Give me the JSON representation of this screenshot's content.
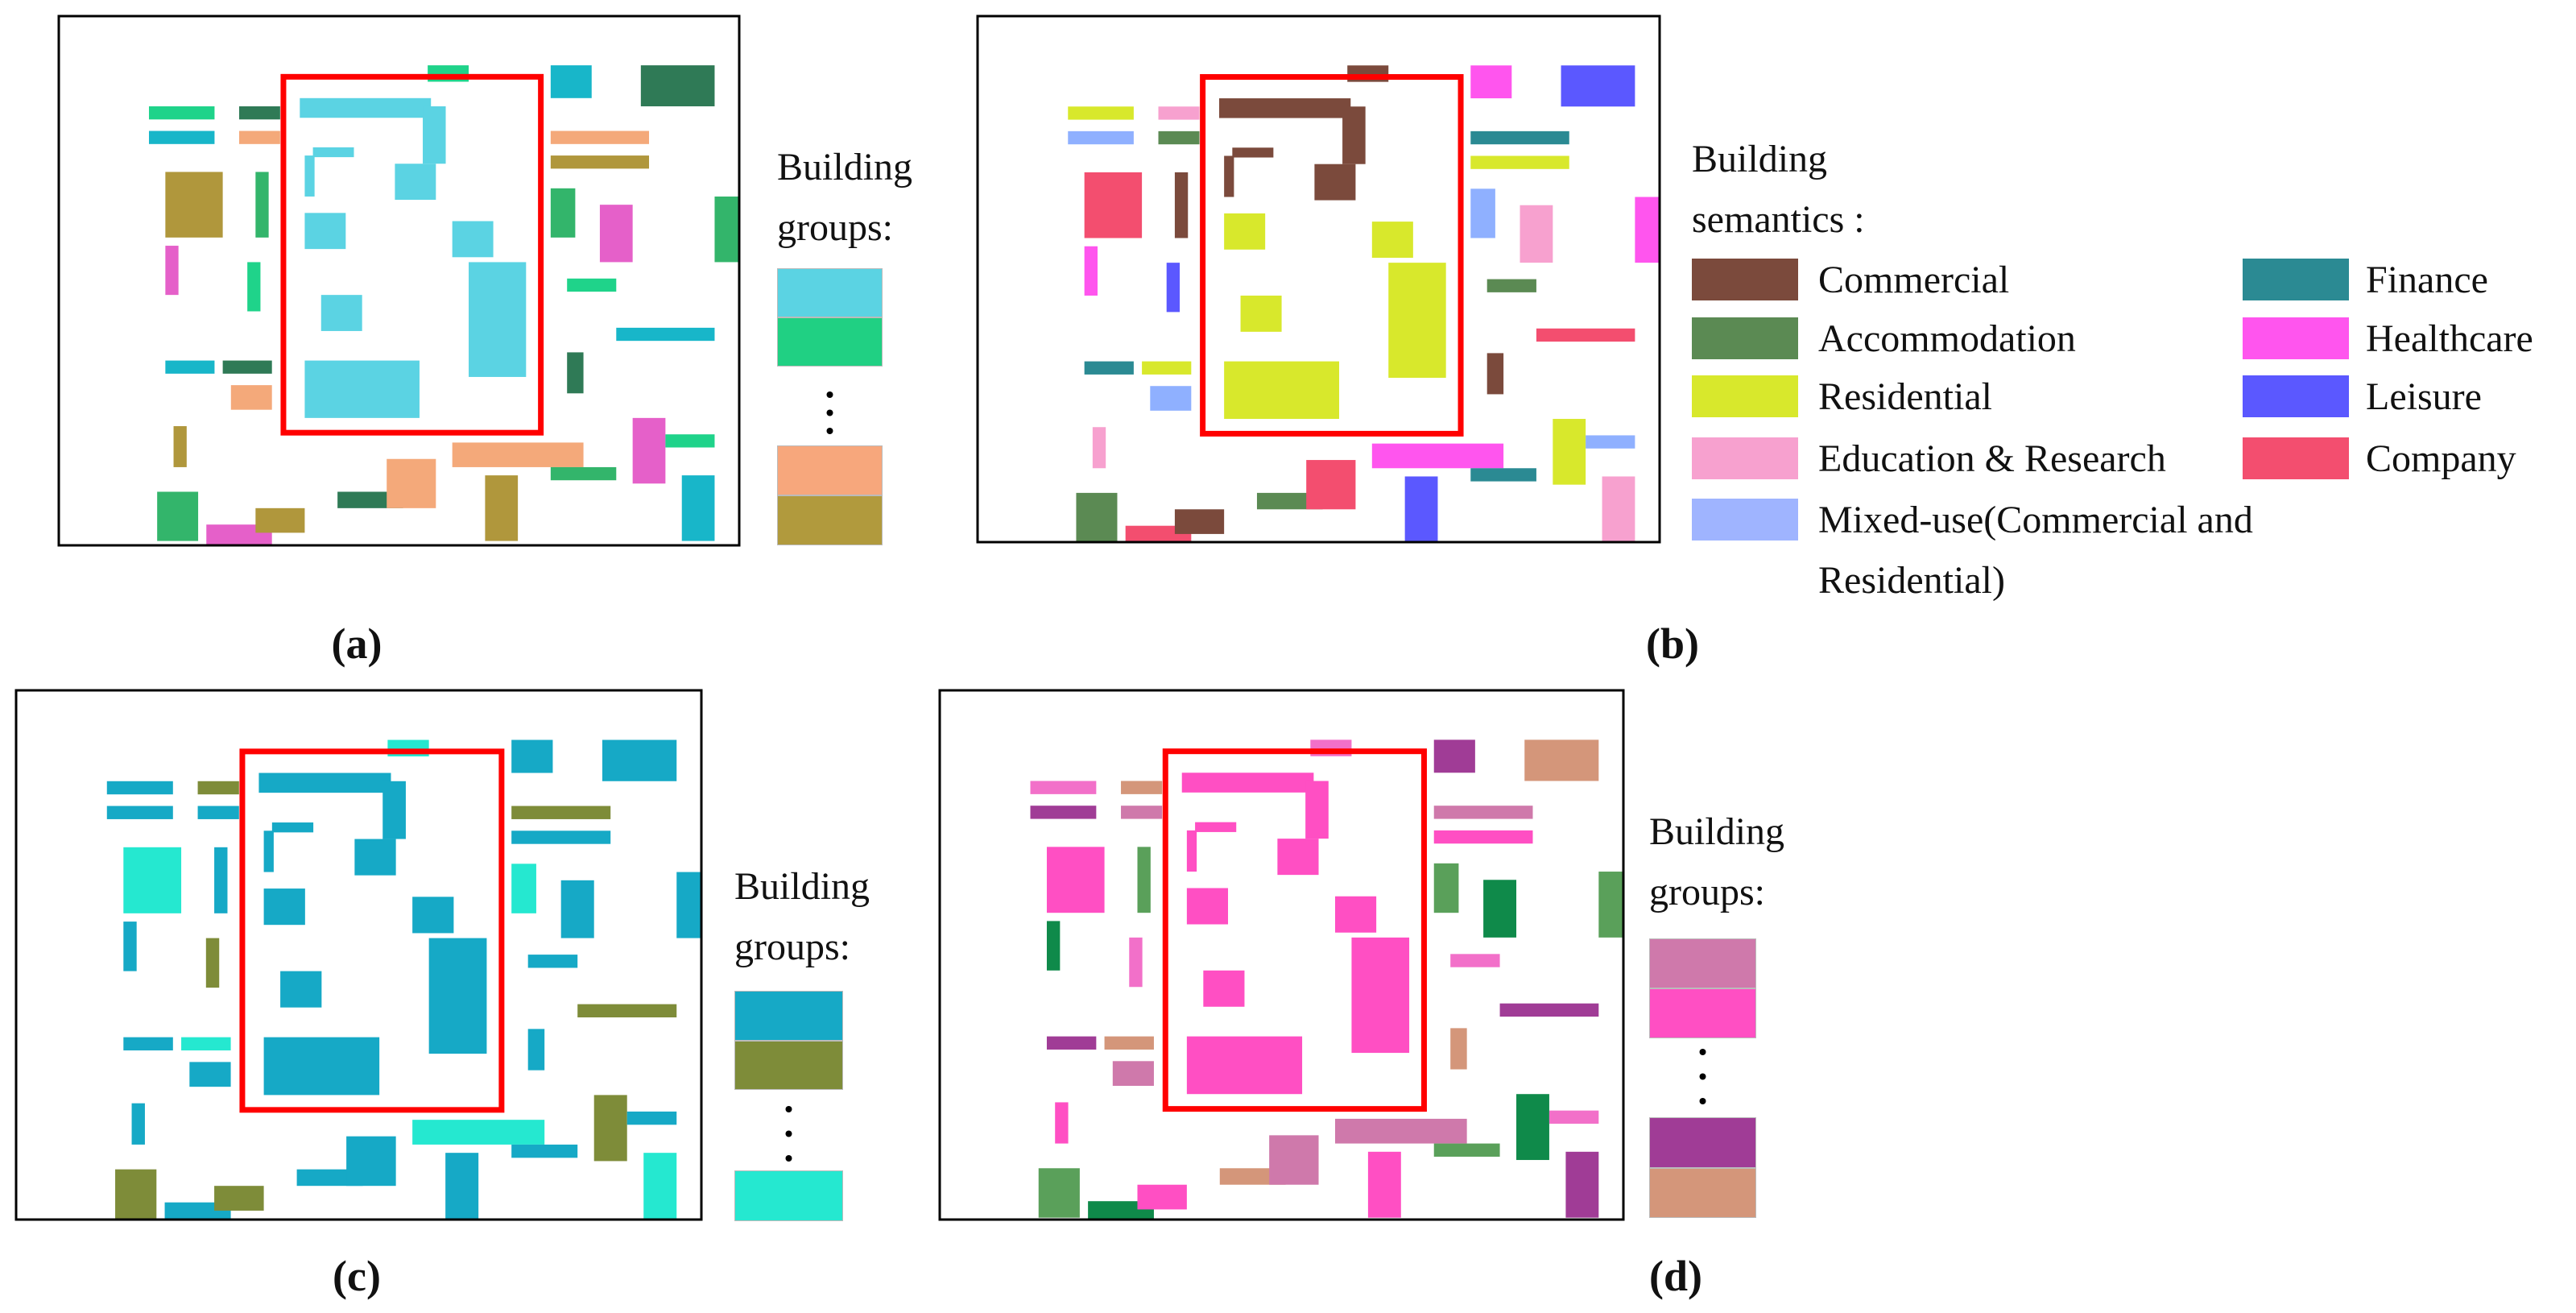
{
  "panels": [
    {
      "label": "(a)",
      "legend_title": "Building groups:",
      "swatches_top": [
        "#5bd3e3",
        "#20d083"
      ],
      "swatches_bottom": [
        "#f7a77c",
        "#b19a3d"
      ]
    },
    {
      "label": "(b)",
      "legend_title": "Building semantics :",
      "legend": [
        {
          "label": "Commercial",
          "color": "#7b4a3c"
        },
        {
          "label": "Accommodation",
          "color": "#5b8a53"
        },
        {
          "label": "Residential",
          "color": "#d8e82c"
        },
        {
          "label": "Education & Research",
          "color": "#f7a1cf"
        },
        {
          "label": "Mixed-use(Commercial and Residential)",
          "color": "#9fb4ff"
        },
        {
          "label": "Finance",
          "color": "#2b8a93"
        },
        {
          "label": "Healthcare",
          "color": "#ff55ee"
        },
        {
          "label": "Leisure",
          "color": "#5b58ff"
        },
        {
          "label": "Company",
          "color": "#f34e6f"
        }
      ]
    },
    {
      "label": "(c)",
      "legend_title": "Building groups:",
      "swatches_top": [
        "#16a9c6",
        "#7e8c39"
      ],
      "swatches_bottom": [
        "#25e8d0"
      ]
    },
    {
      "label": "(d)",
      "legend_title": "Building groups:",
      "swatches_top": [
        "#cf79ab",
        "#ff4fc3"
      ],
      "swatches_bottom": [
        "#a03c96",
        "#d4967a"
      ]
    }
  ]
}
